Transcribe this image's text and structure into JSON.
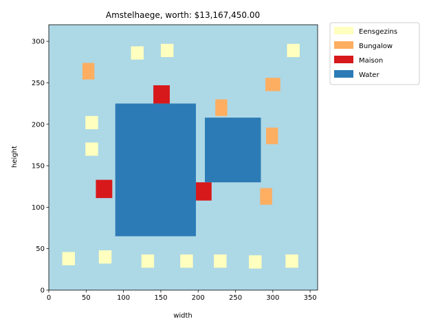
{
  "chart_data": {
    "type": "map",
    "title": "Amstelhaege, worth: $13,167,450.00",
    "xlabel": "width",
    "ylabel": "height",
    "xlim": [
      0,
      360
    ],
    "ylim": [
      0,
      320
    ],
    "xticks": [
      0,
      50,
      100,
      150,
      200,
      250,
      300,
      350
    ],
    "yticks": [
      0,
      50,
      100,
      150,
      200,
      250,
      300
    ],
    "background_color": "#add8e6",
    "grid": false,
    "legend_position": "outside-top-right",
    "legend": [
      {
        "label": "Eensgezins",
        "color": "#ffffbf"
      },
      {
        "label": "Bungalow",
        "color": "#fdae61"
      },
      {
        "label": "Maison",
        "color": "#d7191c"
      },
      {
        "label": "Water",
        "color": "#2c7bb6"
      }
    ],
    "areas": [
      {
        "type": "Water",
        "x": [
          89,
          197
        ],
        "y": [
          65,
          225
        ]
      },
      {
        "type": "Water",
        "x": [
          209,
          284
        ],
        "y": [
          130,
          208
        ]
      },
      {
        "type": "Maison",
        "x": [
          140,
          162
        ],
        "y": [
          225,
          247
        ]
      },
      {
        "type": "Maison",
        "x": [
          63,
          85
        ],
        "y": [
          111,
          133
        ]
      },
      {
        "type": "Maison",
        "x": [
          197,
          218
        ],
        "y": [
          108,
          130
        ]
      },
      {
        "type": "Bungalow",
        "x": [
          45,
          61
        ],
        "y": [
          254,
          274
        ]
      },
      {
        "type": "Bungalow",
        "x": [
          223,
          239
        ],
        "y": [
          210,
          230
        ]
      },
      {
        "type": "Bungalow",
        "x": [
          290,
          310
        ],
        "y": [
          240,
          256
        ]
      },
      {
        "type": "Bungalow",
        "x": [
          291,
          307
        ],
        "y": [
          176,
          196
        ]
      },
      {
        "type": "Bungalow",
        "x": [
          283,
          299
        ],
        "y": [
          103,
          123
        ]
      },
      {
        "type": "Eensgezins",
        "x": [
          110,
          127
        ],
        "y": [
          278,
          294
        ]
      },
      {
        "type": "Eensgezins",
        "x": [
          150,
          167
        ],
        "y": [
          281,
          297
        ]
      },
      {
        "type": "Eensgezins",
        "x": [
          319,
          336
        ],
        "y": [
          281,
          297
        ]
      },
      {
        "type": "Eensgezins",
        "x": [
          49,
          66
        ],
        "y": [
          194,
          210
        ]
      },
      {
        "type": "Eensgezins",
        "x": [
          49,
          66
        ],
        "y": [
          162,
          178
        ]
      },
      {
        "type": "Eensgezins",
        "x": [
          18,
          35
        ],
        "y": [
          30,
          46
        ]
      },
      {
        "type": "Eensgezins",
        "x": [
          67,
          84
        ],
        "y": [
          32,
          48
        ]
      },
      {
        "type": "Eensgezins",
        "x": [
          124,
          141
        ],
        "y": [
          27,
          43
        ]
      },
      {
        "type": "Eensgezins",
        "x": [
          176,
          193
        ],
        "y": [
          27,
          43
        ]
      },
      {
        "type": "Eensgezins",
        "x": [
          221,
          238
        ],
        "y": [
          27,
          43
        ]
      },
      {
        "type": "Eensgezins",
        "x": [
          268,
          285
        ],
        "y": [
          26,
          42
        ]
      },
      {
        "type": "Eensgezins",
        "x": [
          317,
          334
        ],
        "y": [
          27,
          43
        ]
      }
    ]
  }
}
